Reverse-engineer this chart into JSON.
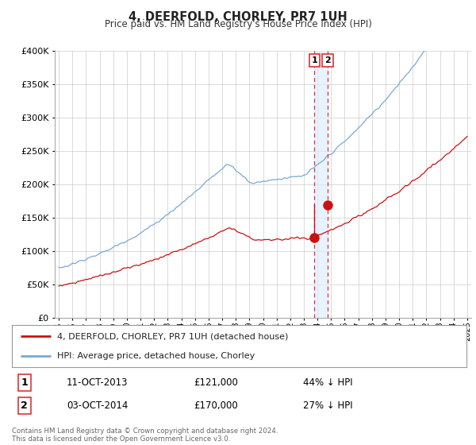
{
  "title": "4, DEERFOLD, CHORLEY, PR7 1UH",
  "subtitle": "Price paid vs. HM Land Registry's House Price Index (HPI)",
  "ylim": [
    0,
    400000
  ],
  "yticks": [
    0,
    50000,
    100000,
    150000,
    200000,
    250000,
    300000,
    350000,
    400000
  ],
  "hpi_color": "#7aa8d4",
  "property_color": "#cc1111",
  "transaction1_x": 2013.78,
  "transaction2_x": 2014.75,
  "transaction1_price": 121000,
  "transaction2_price": 170000,
  "vline_color": "#dd3333",
  "shade_color": "#ddeeff",
  "legend_property_label": "4, DEERFOLD, CHORLEY, PR7 1UH (detached house)",
  "legend_hpi_label": "HPI: Average price, detached house, Chorley",
  "transaction1_date": "11-OCT-2013",
  "transaction2_date": "03-OCT-2014",
  "transaction1_hpi_pct": "44% ↓ HPI",
  "transaction2_hpi_pct": "27% ↓ HPI",
  "footer": "Contains HM Land Registry data © Crown copyright and database right 2024.\nThis data is licensed under the Open Government Licence v3.0.",
  "background_color": "#ffffff",
  "grid_color": "#cccccc",
  "xmin": 1995,
  "xmax": 2025
}
